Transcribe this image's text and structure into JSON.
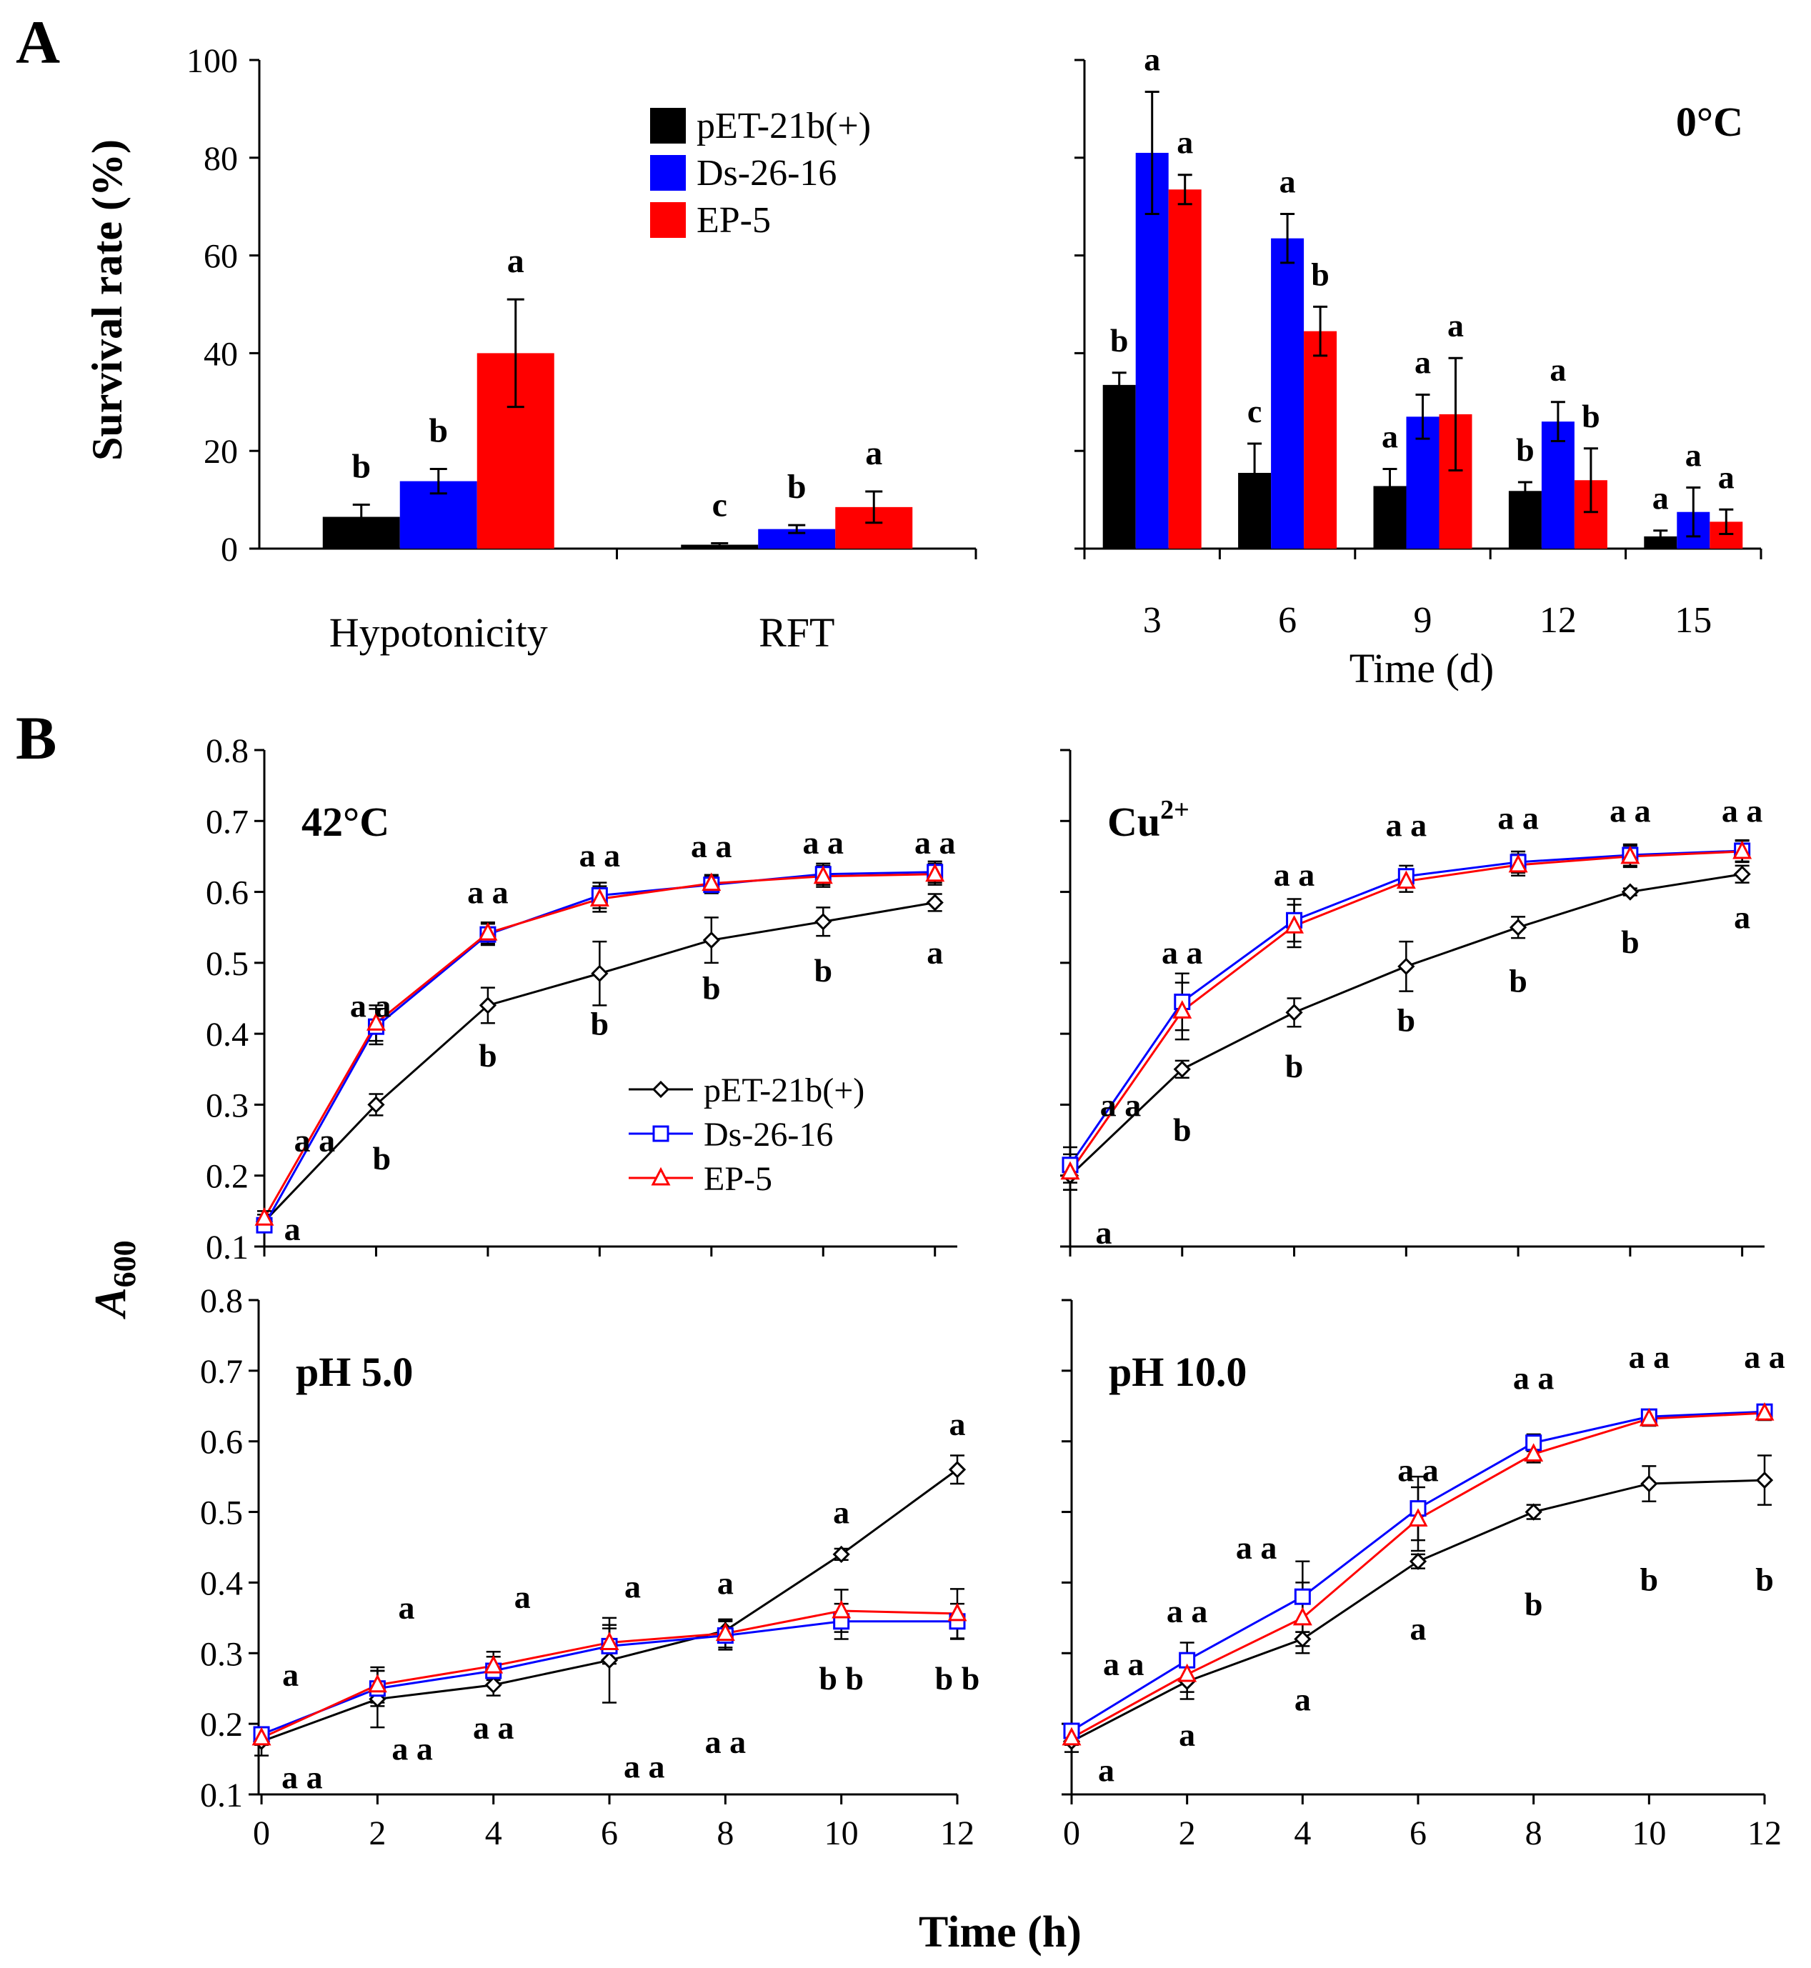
{
  "panel_labels": {
    "a": "A",
    "b": "B"
  },
  "legend": [
    {
      "name": "pET-21b(+)",
      "color": "#000000",
      "marker": "diamond"
    },
    {
      "name": "Ds-26-16",
      "color": "#0000ff",
      "marker": "square"
    },
    {
      "name": "EP-5",
      "color": "#ff0000",
      "marker": "triangle"
    }
  ],
  "chart_data": [
    {
      "id": "A1",
      "type": "bar",
      "title": "",
      "ylabel": "Survival rate (%)",
      "xlabel": "",
      "ylim": [
        0,
        100
      ],
      "yticks": [
        "0",
        "20",
        "40",
        "60",
        "80",
        "100"
      ],
      "categories": [
        "Hypotonicity",
        "RFT"
      ],
      "series": [
        {
          "name": "pET-21b(+)",
          "color": "#000000",
          "values": [
            6.5,
            0.8
          ],
          "errors": [
            2.5,
            0.3
          ],
          "letters": [
            "b",
            "c"
          ]
        },
        {
          "name": "Ds-26-16",
          "color": "#0000ff",
          "values": [
            13.8,
            4.0
          ],
          "errors": [
            2.5,
            0.8
          ],
          "letters": [
            "b",
            "b"
          ]
        },
        {
          "name": "EP-5",
          "color": "#ff0000",
          "values": [
            40.0,
            8.5
          ],
          "errors": [
            11.0,
            3.2
          ],
          "letters": [
            "a",
            "a"
          ]
        }
      ]
    },
    {
      "id": "A2",
      "type": "bar",
      "title": "0°C",
      "xlabel": "Time (d)",
      "ylim": [
        0,
        100
      ],
      "categories": [
        "3",
        "6",
        "9",
        "12",
        "15"
      ],
      "series": [
        {
          "name": "pET-21b(+)",
          "color": "#000000",
          "values": [
            33.5,
            15.5,
            12.8,
            11.8,
            2.5
          ],
          "errors": [
            2.5,
            6.0,
            3.5,
            1.8,
            1.2
          ],
          "letters": [
            "b",
            "c",
            "a",
            "b",
            "a"
          ]
        },
        {
          "name": "Ds-26-16",
          "color": "#0000ff",
          "values": [
            81.0,
            63.5,
            27.0,
            26.0,
            7.5
          ],
          "errors": [
            12.5,
            5.0,
            4.5,
            4.0,
            5.0
          ],
          "letters": [
            "a",
            "a",
            "a",
            "a",
            "a"
          ]
        },
        {
          "name": "EP-5",
          "color": "#ff0000",
          "values": [
            73.5,
            44.5,
            27.5,
            14.0,
            5.5
          ],
          "errors": [
            3.0,
            5.0,
            11.5,
            6.5,
            2.5
          ],
          "letters": [
            "a",
            "b",
            "a",
            "b",
            "a"
          ]
        }
      ]
    },
    {
      "id": "B1",
      "type": "line",
      "title": "42°C",
      "ylabel": "A600",
      "ylim": [
        0.1,
        0.8
      ],
      "yticks": [
        "0.1",
        "0.2",
        "0.3",
        "0.4",
        "0.5",
        "0.6",
        "0.7",
        "0.8"
      ],
      "x": [
        0,
        2,
        4,
        6,
        8,
        10,
        12
      ],
      "series": [
        {
          "name": "pET-21b(+)",
          "values": [
            0.135,
            0.3,
            0.44,
            0.485,
            0.532,
            0.558,
            0.585
          ],
          "errors": [
            0.01,
            0.015,
            0.025,
            0.045,
            0.032,
            0.02,
            0.012
          ]
        },
        {
          "name": "Ds-26-16",
          "values": [
            0.13,
            0.41,
            0.54,
            0.595,
            0.61,
            0.625,
            0.628
          ],
          "errors": [
            0.01,
            0.025,
            0.015,
            0.018,
            0.012,
            0.015,
            0.015
          ]
        },
        {
          "name": "EP-5",
          "values": [
            0.14,
            0.415,
            0.542,
            0.59,
            0.612,
            0.622,
            0.625
          ],
          "errors": [
            0.01,
            0.025,
            0.015,
            0.018,
            0.012,
            0.015,
            0.015
          ]
        }
      ],
      "annotations": [
        {
          "text": "a",
          "x": 0.5,
          "y": 0.125
        },
        {
          "text": "a a",
          "x": 0.9,
          "y": 0.25
        },
        {
          "text": "b",
          "x": 2.1,
          "y": 0.225
        },
        {
          "text": "a a",
          "x": 1.9,
          "y": 0.44
        },
        {
          "text": "b",
          "x": 4.0,
          "y": 0.37
        },
        {
          "text": "a a",
          "x": 4.0,
          "y": 0.6
        },
        {
          "text": "b",
          "x": 6.0,
          "y": 0.415
        },
        {
          "text": "a a",
          "x": 6.0,
          "y": 0.652
        },
        {
          "text": "b",
          "x": 8.0,
          "y": 0.465
        },
        {
          "text": "a a",
          "x": 8.0,
          "y": 0.665
        },
        {
          "text": "b",
          "x": 10.0,
          "y": 0.49
        },
        {
          "text": "a a",
          "x": 10.0,
          "y": 0.67
        },
        {
          "text": "a",
          "x": 12.0,
          "y": 0.515
        },
        {
          "text": "a a",
          "x": 12.0,
          "y": 0.67
        }
      ]
    },
    {
      "id": "B2",
      "type": "line",
      "title": "Cu2+",
      "title_base": "Cu",
      "title_sup": "2+",
      "ylim": [
        0.1,
        0.8
      ],
      "x": [
        0,
        2,
        4,
        6,
        8,
        10,
        12
      ],
      "series": [
        {
          "name": "pET-21b(+)",
          "values": [
            0.2,
            0.35,
            0.43,
            0.495,
            0.55,
            0.6,
            0.625
          ],
          "errors": [
            0.02,
            0.012,
            0.02,
            0.035,
            0.015,
            0.005,
            0.012
          ]
        },
        {
          "name": "Ds-26-16",
          "values": [
            0.215,
            0.445,
            0.56,
            0.622,
            0.642,
            0.652,
            0.658
          ],
          "errors": [
            0.025,
            0.04,
            0.03,
            0.015,
            0.015,
            0.015,
            0.015
          ]
        },
        {
          "name": "EP-5",
          "values": [
            0.205,
            0.432,
            0.552,
            0.615,
            0.638,
            0.65,
            0.657
          ],
          "errors": [
            0.025,
            0.04,
            0.03,
            0.015,
            0.015,
            0.015,
            0.015
          ]
        }
      ],
      "annotations": [
        {
          "text": "a",
          "x": 0.6,
          "y": 0.12
        },
        {
          "text": "a a",
          "x": 0.9,
          "y": 0.3
        },
        {
          "text": "b",
          "x": 2.0,
          "y": 0.265
        },
        {
          "text": "a a",
          "x": 2.0,
          "y": 0.515
        },
        {
          "text": "b",
          "x": 4.0,
          "y": 0.355
        },
        {
          "text": "a a",
          "x": 4.0,
          "y": 0.625
        },
        {
          "text": "b",
          "x": 6.0,
          "y": 0.42
        },
        {
          "text": "a a",
          "x": 6.0,
          "y": 0.695
        },
        {
          "text": "b",
          "x": 8.0,
          "y": 0.475
        },
        {
          "text": "a a",
          "x": 8.0,
          "y": 0.705
        },
        {
          "text": "b",
          "x": 10.0,
          "y": 0.53
        },
        {
          "text": "a a",
          "x": 10.0,
          "y": 0.715
        },
        {
          "text": "a",
          "x": 12.0,
          "y": 0.565
        },
        {
          "text": "a a",
          "x": 12.0,
          "y": 0.715
        }
      ]
    },
    {
      "id": "B3",
      "type": "line",
      "title": "pH 5.0",
      "ylim": [
        0.1,
        0.8
      ],
      "yticks": [
        "0.1",
        "0.2",
        "0.3",
        "0.4",
        "0.5",
        "0.6",
        "0.7",
        "0.8"
      ],
      "x": [
        0,
        2,
        4,
        6,
        8,
        10,
        12
      ],
      "xticks": [
        "0",
        "2",
        "4",
        "6",
        "8",
        "10",
        "12"
      ],
      "series": [
        {
          "name": "pET-21b(+)",
          "values": [
            0.175,
            0.235,
            0.255,
            0.29,
            0.332,
            0.44,
            0.56
          ],
          "errors": [
            0.02,
            0.04,
            0.015,
            0.06,
            0.015,
            0.008,
            0.02
          ]
        },
        {
          "name": "Ds-26-16",
          "values": [
            0.185,
            0.25,
            0.275,
            0.31,
            0.325,
            0.345,
            0.345
          ],
          "errors": [
            0.01,
            0.025,
            0.02,
            0.025,
            0.02,
            0.025,
            0.025
          ]
        },
        {
          "name": "EP-5",
          "values": [
            0.18,
            0.255,
            0.282,
            0.315,
            0.328,
            0.36,
            0.356
          ],
          "errors": [
            0.01,
            0.025,
            0.02,
            0.025,
            0.02,
            0.03,
            0.035
          ]
        }
      ],
      "annotations": [
        {
          "text": "a",
          "x": 0.5,
          "y": 0.27
        },
        {
          "text": "a a",
          "x": 0.7,
          "y": 0.125
        },
        {
          "text": "a",
          "x": 2.5,
          "y": 0.365
        },
        {
          "text": "a a",
          "x": 2.6,
          "y": 0.165
        },
        {
          "text": "a",
          "x": 4.5,
          "y": 0.38
        },
        {
          "text": "a a",
          "x": 4.0,
          "y": 0.195
        },
        {
          "text": "a",
          "x": 6.4,
          "y": 0.395
        },
        {
          "text": "a a",
          "x": 6.6,
          "y": 0.14
        },
        {
          "text": "a",
          "x": 8.0,
          "y": 0.4
        },
        {
          "text": "a a",
          "x": 8.0,
          "y": 0.175
        },
        {
          "text": "a",
          "x": 10.0,
          "y": 0.5
        },
        {
          "text": "b b",
          "x": 10.0,
          "y": 0.265
        },
        {
          "text": "a",
          "x": 12.0,
          "y": 0.625
        },
        {
          "text": "b b",
          "x": 12.0,
          "y": 0.265
        }
      ]
    },
    {
      "id": "B4",
      "type": "line",
      "title": "pH 10.0",
      "xlabel": "Time (h)",
      "ylim": [
        0.1,
        0.8
      ],
      "x": [
        0,
        2,
        4,
        6,
        8,
        10,
        12
      ],
      "xticks": [
        "0",
        "2",
        "4",
        "6",
        "8",
        "10",
        "12"
      ],
      "series": [
        {
          "name": "pET-21b(+)",
          "values": [
            0.175,
            0.26,
            0.32,
            0.43,
            0.5,
            0.54,
            0.545
          ],
          "errors": [
            0.015,
            0.025,
            0.01,
            0.01,
            0.01,
            0.025,
            0.035
          ]
        },
        {
          "name": "Ds-26-16",
          "values": [
            0.19,
            0.29,
            0.38,
            0.505,
            0.598,
            0.635,
            0.642
          ],
          "errors": [
            0.01,
            0.025,
            0.05,
            0.045,
            0.012,
            0.01,
            0.01
          ]
        },
        {
          "name": "EP-5",
          "values": [
            0.18,
            0.27,
            0.35,
            0.49,
            0.582,
            0.632,
            0.64
          ],
          "errors": [
            0.01,
            0.025,
            0.05,
            0.045,
            0.012,
            0.01,
            0.01
          ]
        }
      ],
      "annotations": [
        {
          "text": "a",
          "x": 0.6,
          "y": 0.135
        },
        {
          "text": "a a",
          "x": 0.9,
          "y": 0.285
        },
        {
          "text": "a",
          "x": 2.0,
          "y": 0.185
        },
        {
          "text": "a a",
          "x": 2.0,
          "y": 0.36
        },
        {
          "text": "a",
          "x": 4.0,
          "y": 0.235
        },
        {
          "text": "a a",
          "x": 3.2,
          "y": 0.45
        },
        {
          "text": "a",
          "x": 6.0,
          "y": 0.335
        },
        {
          "text": "a a",
          "x": 6.0,
          "y": 0.56
        },
        {
          "text": "b",
          "x": 8.0,
          "y": 0.37
        },
        {
          "text": "a a",
          "x": 8.0,
          "y": 0.69
        },
        {
          "text": "b",
          "x": 10.0,
          "y": 0.405
        },
        {
          "text": "a a",
          "x": 10.0,
          "y": 0.72
        },
        {
          "text": "b",
          "x": 12.0,
          "y": 0.405
        },
        {
          "text": "a a",
          "x": 12.0,
          "y": 0.72
        }
      ]
    }
  ]
}
